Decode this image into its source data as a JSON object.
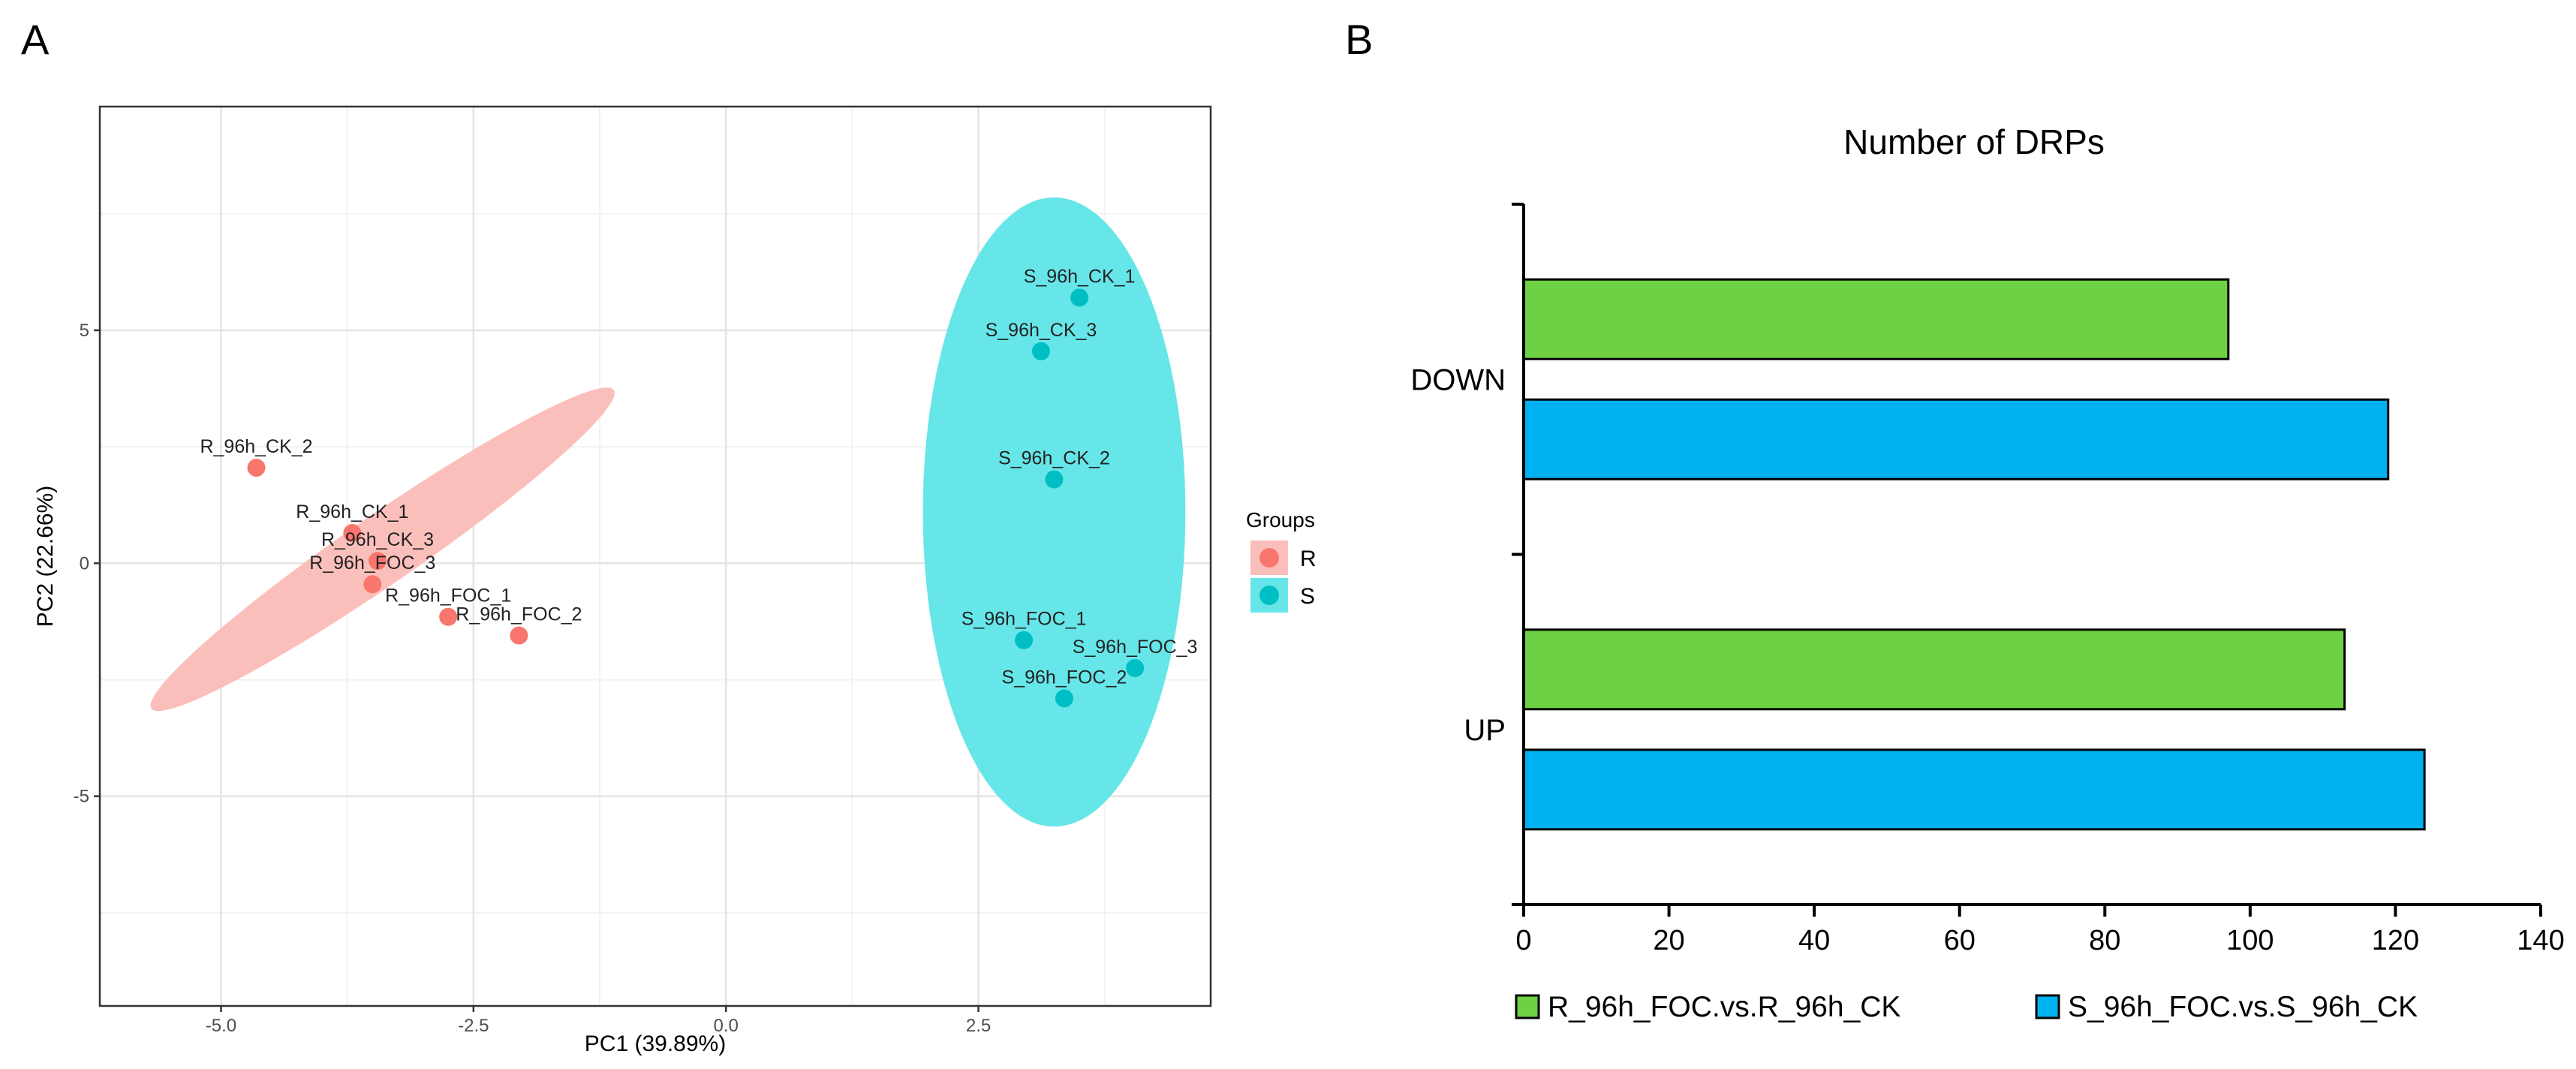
{
  "panel_labels": {
    "a": "A",
    "b": "B"
  },
  "chart_data": [
    {
      "type": "scatter",
      "title": "",
      "xlabel": "PC1 (39.89%)",
      "ylabel": "PC2 (22.66%)",
      "xlim": [
        -6.2,
        4.8
      ],
      "ylim": [
        -9.5,
        9.8
      ],
      "xticks": [
        -5.0,
        -2.5,
        0.0,
        2.5
      ],
      "xtick_labels": [
        "-5.0",
        "-2.5",
        "0.0",
        "2.5"
      ],
      "yticks": [
        -5,
        0,
        5
      ],
      "ytick_labels": [
        "-5",
        "0",
        "5"
      ],
      "grid": true,
      "legend": {
        "title": "Groups",
        "position": "right",
        "entries": [
          {
            "label": "R",
            "color": "#f8766d",
            "fill": "#fbbfbb"
          },
          {
            "label": "S",
            "color": "#00bfc4",
            "fill": "#66e6e8"
          }
        ]
      },
      "ellipses": [
        {
          "group": "R",
          "cx": -3.4,
          "cy": 0.3,
          "rx": 2.78,
          "ry": 0.74,
          "angle_deg": -34.55,
          "fill": "#fbbfbb"
        },
        {
          "group": "S",
          "cx": 3.25,
          "cy": 1.1,
          "rx": 1.3,
          "ry": 6.75,
          "angle_deg": 0,
          "fill": "#66e6e8"
        }
      ],
      "points": [
        {
          "label": "R_96h_CK_2",
          "x": -4.65,
          "y": 2.05,
          "group": "R"
        },
        {
          "label": "R_96h_CK_1",
          "x": -3.7,
          "y": 0.65,
          "group": "R"
        },
        {
          "label": "R_96h_CK_3",
          "x": -3.45,
          "y": 0.05,
          "group": "R"
        },
        {
          "label": "R_96h_FOC_3",
          "x": -3.5,
          "y": -0.45,
          "group": "R"
        },
        {
          "label": "R_96h_FOC_1",
          "x": -2.75,
          "y": -1.15,
          "group": "R"
        },
        {
          "label": "R_96h_FOC_2",
          "x": -2.05,
          "y": -1.55,
          "group": "R"
        },
        {
          "label": "S_96h_CK_1",
          "x": 3.5,
          "y": 5.7,
          "group": "S"
        },
        {
          "label": "S_96h_CK_3",
          "x": 3.12,
          "y": 4.55,
          "group": "S"
        },
        {
          "label": "S_96h_CK_2",
          "x": 3.25,
          "y": 1.8,
          "group": "S"
        },
        {
          "label": "S_96h_FOC_1",
          "x": 2.95,
          "y": -1.65,
          "group": "S"
        },
        {
          "label": "S_96h_FOC_3",
          "x": 4.05,
          "y": -2.25,
          "group": "S"
        },
        {
          "label": "S_96h_FOC_2",
          "x": 3.35,
          "y": -2.9,
          "group": "S"
        }
      ]
    },
    {
      "type": "bar",
      "orientation": "horizontal",
      "title": "Number of DRPs",
      "xlabel": "",
      "ylabel": "",
      "categories": [
        "DOWN",
        "UP"
      ],
      "xlim": [
        0,
        140
      ],
      "xticks": [
        0,
        20,
        40,
        60,
        80,
        100,
        120,
        140
      ],
      "xtick_labels": [
        "0",
        "20",
        "40",
        "60",
        "80",
        "100",
        "120",
        "140"
      ],
      "grid": false,
      "legend_position": "bottom",
      "series": [
        {
          "name": "R_96h_FOC.vs.R_96h_CK",
          "values": [
            97,
            113
          ],
          "color": "#6dd143"
        },
        {
          "name": "S_96h_FOC.vs.S_96h_CK",
          "values": [
            119,
            124
          ],
          "color": "#00b2ef"
        }
      ]
    }
  ]
}
